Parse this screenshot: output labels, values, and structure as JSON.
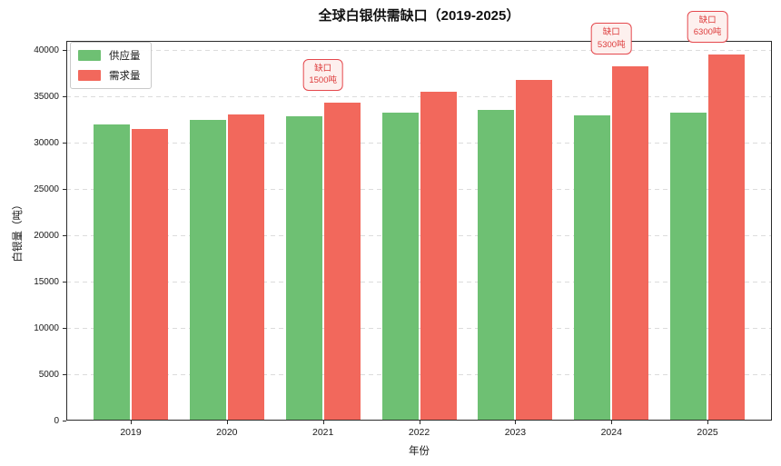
{
  "chart_data": {
    "type": "bar",
    "title": "全球白银供需缺口（2019-2025）",
    "xlabel": "年份",
    "ylabel": "白银量（吨）",
    "categories": [
      "2019",
      "2020",
      "2021",
      "2022",
      "2023",
      "2024",
      "2025"
    ],
    "series": [
      {
        "name": "供应量",
        "color": "#6ec073",
        "values": [
          32000,
          32500,
          32800,
          33200,
          33500,
          32900,
          33200
        ]
      },
      {
        "name": "需求量",
        "color": "#f2685c",
        "values": [
          31500,
          33000,
          34300,
          35500,
          36800,
          38200,
          39500
        ]
      }
    ],
    "ylim": [
      0,
      41000
    ],
    "yticks": [
      0,
      5000,
      10000,
      15000,
      20000,
      25000,
      30000,
      35000,
      40000
    ],
    "grid": "horizontal-dashed",
    "legend_position": "upper-left",
    "annotations": [
      {
        "category": "2021",
        "line1": "缺口",
        "line2": "1500吨"
      },
      {
        "category": "2024",
        "line1": "缺口",
        "line2": "5300吨"
      },
      {
        "category": "2025",
        "line1": "缺口",
        "line2": "6300吨"
      }
    ]
  },
  "colors": {
    "background": "#ffffff",
    "spine": "#2b2b2b",
    "grid": "#dcdcdc",
    "annotation_border": "#e5484d",
    "annotation_text": "#dd3b3b",
    "annotation_fill": "#fdf0ee"
  }
}
